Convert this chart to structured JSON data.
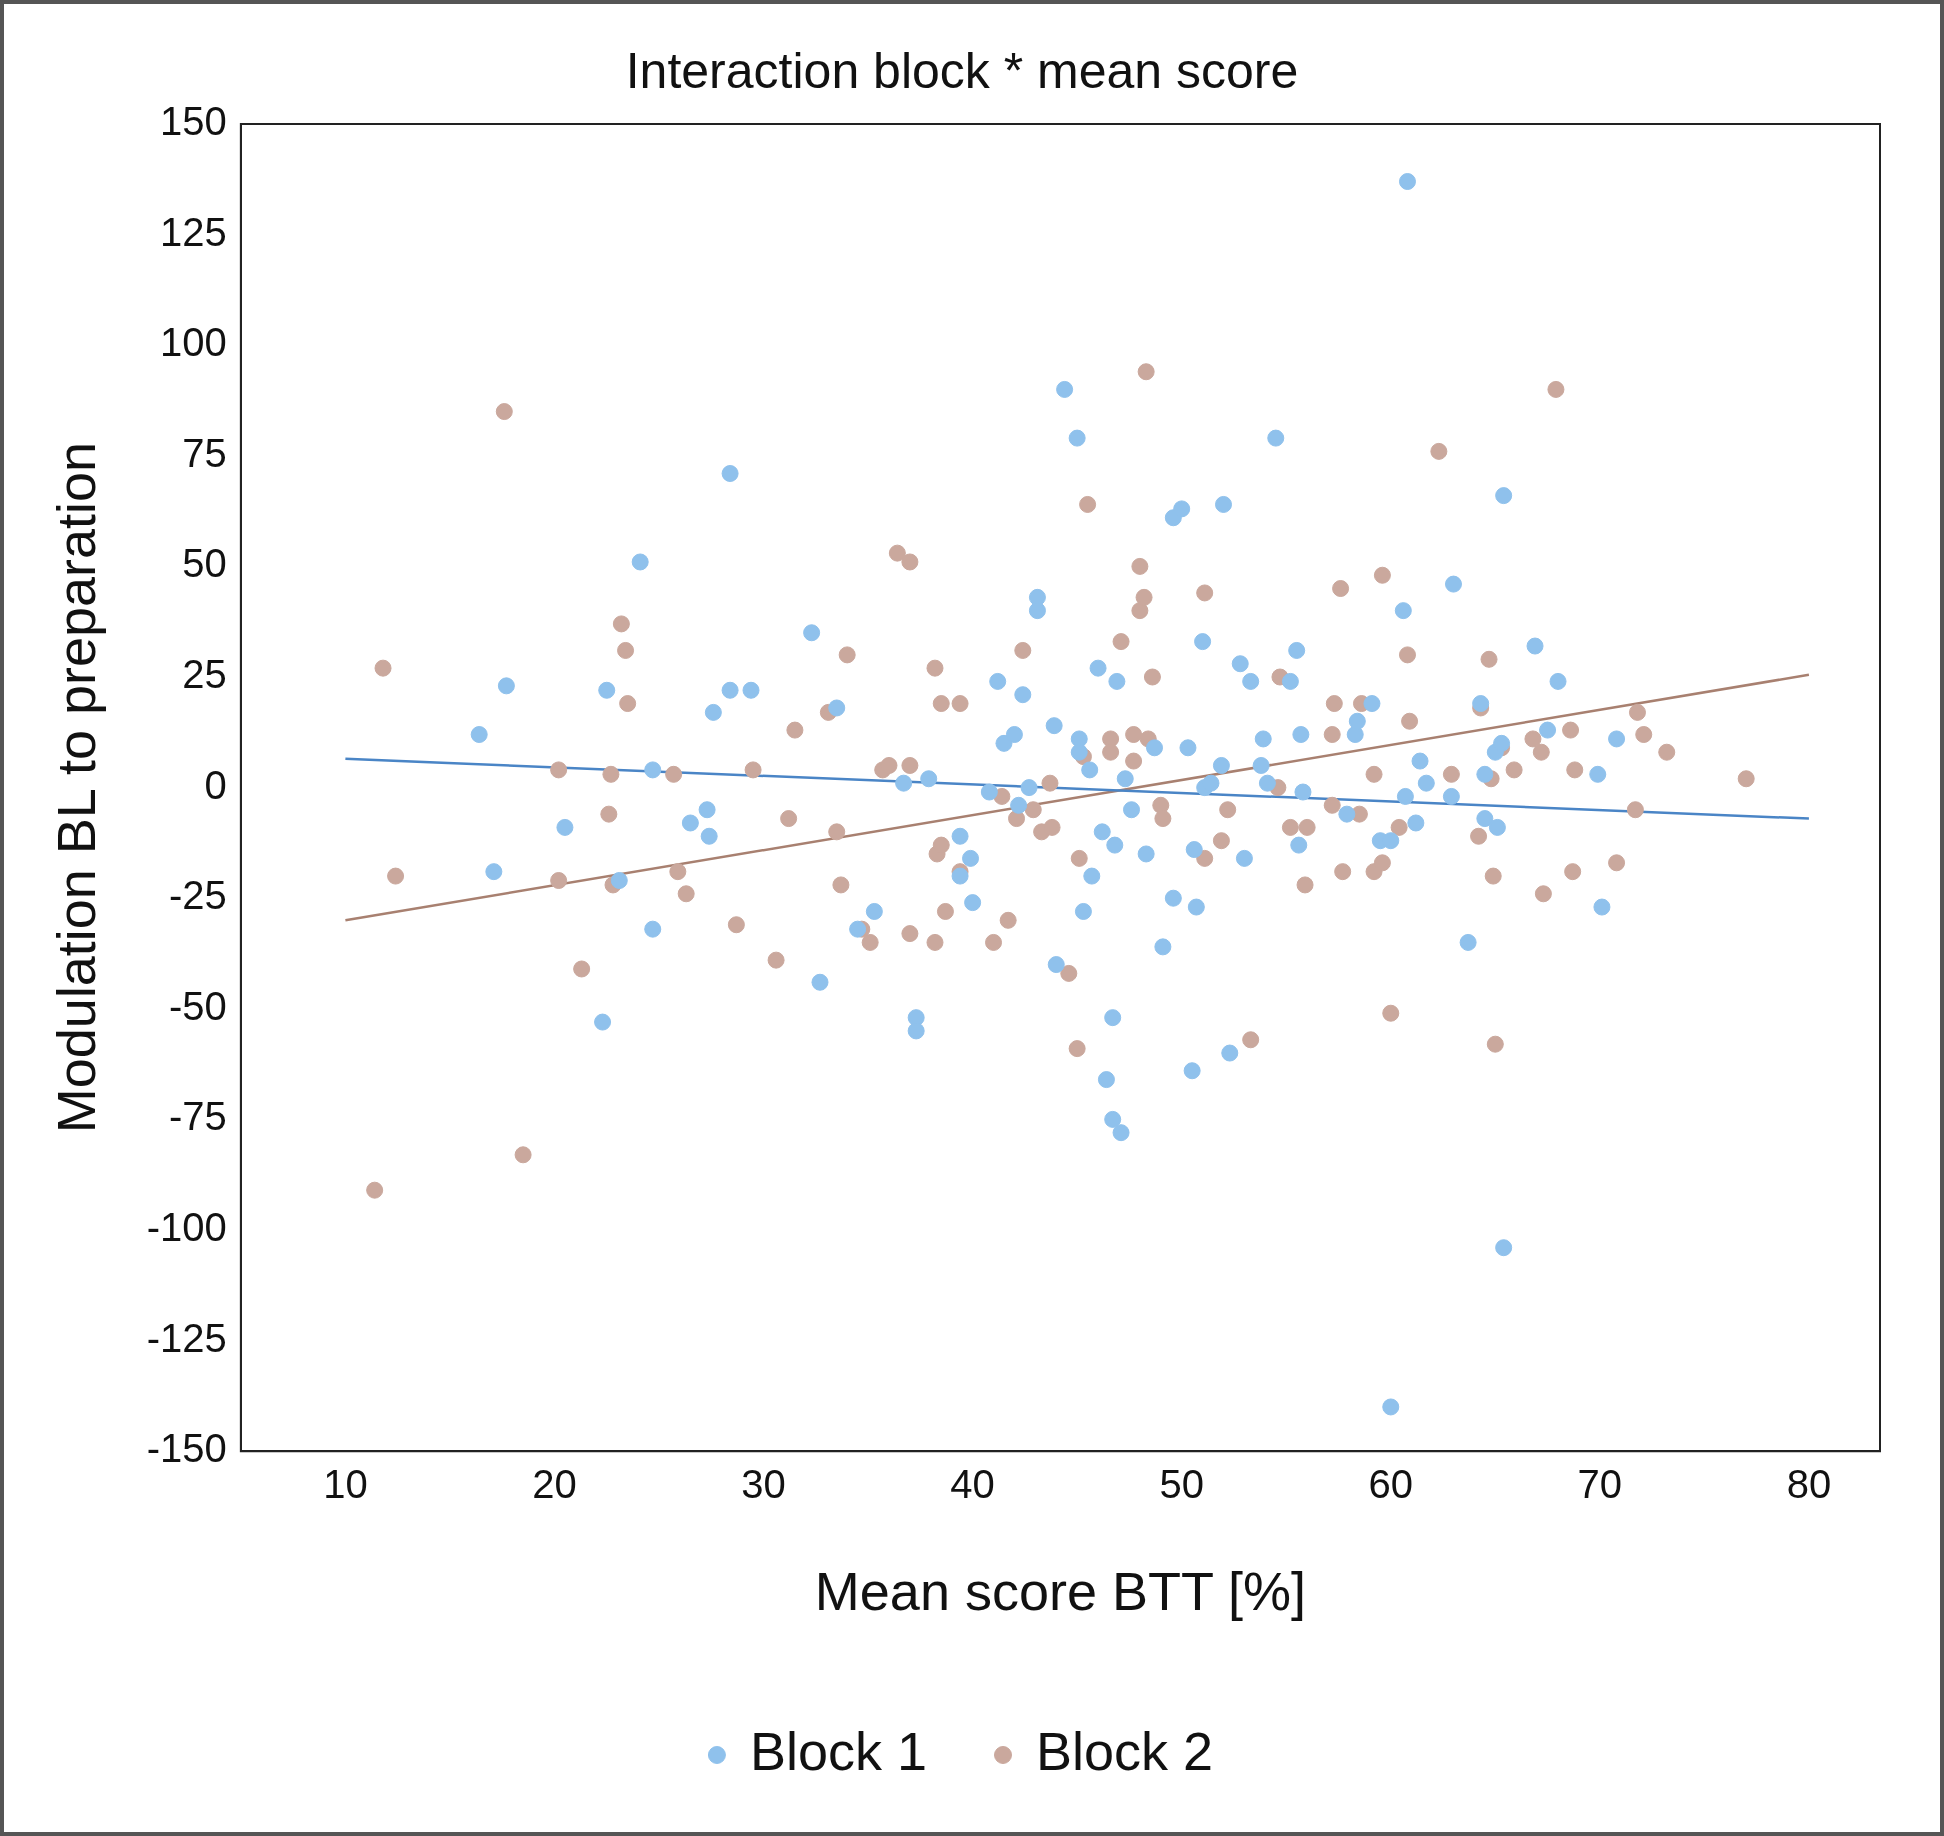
{
  "chart_data": {
    "type": "scatter",
    "title": "Interaction block * mean score",
    "xlabel": "Mean score BTT [%]",
    "ylabel": "Modulation BL to preparation",
    "xlim": [
      5,
      83.4
    ],
    "ylim": [
      -150,
      150
    ],
    "xticks": [
      10,
      20,
      30,
      40,
      50,
      60,
      70,
      80
    ],
    "yticks": [
      -150,
      -125,
      -100,
      -75,
      -50,
      -25,
      0,
      25,
      50,
      75,
      100,
      125,
      150
    ],
    "grid": false,
    "legend": "bottom",
    "marker": "circle",
    "series": [
      {
        "name": "Block 1",
        "color": "#8fc1ec",
        "x": [
          16.4,
          17.1,
          17.7,
          20.5,
          22.3,
          22.5,
          23.1,
          24.1,
          24.7,
          24.7,
          26.5,
          27.3,
          27.4,
          27.6,
          28.4,
          28.4,
          29.4,
          32.3,
          32.7,
          33.5,
          34.5,
          35.3,
          36.7,
          37.3,
          37.3,
          37.9,
          39.4,
          39.4,
          39.9,
          40,
          40.8,
          41.2,
          41.5,
          42,
          42.2,
          42.4,
          42.7,
          43.1,
          43.1,
          43.9,
          44,
          44.4,
          45,
          45.1,
          45.1,
          45.3,
          45.6,
          45.7,
          46,
          46.2,
          46.4,
          46.7,
          46.7,
          46.8,
          46.9,
          47.1,
          47.3,
          47.6,
          48.3,
          48.7,
          49.1,
          49.6,
          49.6,
          50,
          50.3,
          50.5,
          50.6,
          50.7,
          51,
          51.1,
          51.4,
          51.9,
          52,
          52.3,
          52.8,
          53,
          53.3,
          53.8,
          53.9,
          54.1,
          54.5,
          55.2,
          55.5,
          55.6,
          55.7,
          55.8,
          57.9,
          58.3,
          58.4,
          59.1,
          59.5,
          60,
          60,
          60.6,
          60.7,
          60.8,
          61.2,
          61.4,
          61.7,
          62.9,
          63,
          63.7,
          64.3,
          64.5,
          64.5,
          65,
          65.1,
          65.3,
          65.4,
          65.4,
          66.9,
          67.5,
          68,
          69.9,
          70.1,
          70.8
        ],
        "values": [
          12,
          -19,
          23,
          -9,
          -53,
          22,
          -21,
          51,
          4,
          -32,
          -8,
          -5,
          -11,
          17,
          71,
          22,
          22,
          35,
          -44,
          18,
          -32,
          -28,
          1,
          -52,
          -55,
          2,
          -11,
          -20,
          -16,
          -26,
          -1,
          24,
          10,
          12,
          -4,
          21,
          0,
          43,
          40,
          14,
          -40,
          90,
          79,
          11,
          8,
          -28,
          4,
          -20,
          27,
          -10,
          -66,
          -52,
          -75,
          -13,
          24,
          -78,
          2,
          -5,
          -15,
          9,
          -36,
          -25,
          61,
          63,
          9,
          -64,
          -14,
          -27,
          33,
          0,
          1,
          5,
          64,
          -60,
          28,
          -16,
          24,
          5,
          11,
          1,
          79,
          24,
          31,
          -13,
          12,
          -1,
          -6,
          12,
          15,
          19,
          -12,
          -12,
          -140,
          40,
          -2,
          137,
          -8,
          6,
          1,
          -2,
          46,
          -35,
          19,
          3,
          -7,
          8,
          -9,
          10,
          66,
          -104,
          32,
          13,
          24,
          3,
          -27,
          11
        ]
      },
      {
        "name": "Block 2",
        "color": "#caa89d",
        "x": [
          11.4,
          11.8,
          12.4,
          17.6,
          18.5,
          20.2,
          20.2,
          21.3,
          22.6,
          22.7,
          22.8,
          23.2,
          23.4,
          23.5,
          25.7,
          25.9,
          26.3,
          28.7,
          29.5,
          30.6,
          31.2,
          31.5,
          33.1,
          33.5,
          33.7,
          34,
          34.7,
          35.1,
          35.7,
          36,
          36.4,
          37,
          37,
          37,
          38.2,
          38.2,
          38.3,
          38.5,
          38.5,
          38.7,
          39.4,
          39.4,
          41,
          41.4,
          41.7,
          42.1,
          42.4,
          42.9,
          43.3,
          43.7,
          43.8,
          44.6,
          45,
          45.1,
          45.3,
          45.5,
          46.6,
          46.6,
          47.1,
          47.7,
          47.7,
          48,
          48,
          48.2,
          48.3,
          48.4,
          48.6,
          49,
          49.1,
          51.1,
          51.1,
          51.9,
          52.2,
          53.3,
          54.6,
          54.7,
          55.2,
          55.9,
          56,
          57.2,
          57.2,
          57.3,
          57.6,
          57.7,
          58.5,
          58.6,
          59.2,
          59.2,
          59.6,
          59.6,
          60,
          60.4,
          60.8,
          60.9,
          62.3,
          62.9,
          64.2,
          64.3,
          64.7,
          64.8,
          64.9,
          65,
          65.3,
          65.9,
          66.8,
          67.2,
          67.3,
          67.9,
          68.6,
          68.7,
          68.8,
          70.8,
          71.7,
          71.8,
          72.1,
          73.2,
          77
        ],
        "values": [
          -91,
          27,
          -20,
          85,
          -83,
          4,
          -21,
          -41,
          -6,
          3,
          -22,
          37,
          31,
          19,
          3,
          -19,
          -24,
          -31,
          4,
          -39,
          -7,
          13,
          17,
          -10,
          -22,
          30,
          -32,
          -35,
          4,
          5,
          53,
          5,
          51,
          -33,
          27,
          -35,
          -15,
          19,
          -13,
          -28,
          19,
          -19,
          -35,
          -2,
          -30,
          -7,
          31,
          -5,
          -10,
          1,
          -9,
          -42,
          -59,
          -16,
          7,
          64,
          11,
          8,
          33,
          12,
          6,
          50,
          40,
          43,
          94,
          11,
          25,
          -4,
          -7,
          44,
          -16,
          -12,
          -5,
          -57,
          0,
          25,
          -9,
          -22,
          -9,
          12,
          -4,
          19,
          45,
          -19,
          -6,
          19,
          3,
          -19,
          -17,
          48,
          -51,
          -9,
          30,
          15,
          76,
          3,
          -11,
          18,
          29,
          2,
          -20,
          -58,
          9,
          4,
          11,
          8,
          -24,
          90,
          13,
          -19,
          4,
          -17,
          -5,
          17,
          12,
          8,
          2
        ]
      },
      {
        "type": "line",
        "marker": "none",
        "color": "#4a85c6",
        "x": [
          10,
          80
        ],
        "values": [
          6.5,
          -7
        ]
      },
      {
        "type": "line",
        "marker": "none",
        "color": "#a88070",
        "x": [
          10,
          80
        ],
        "values": [
          -30,
          25.5
        ]
      }
    ]
  }
}
